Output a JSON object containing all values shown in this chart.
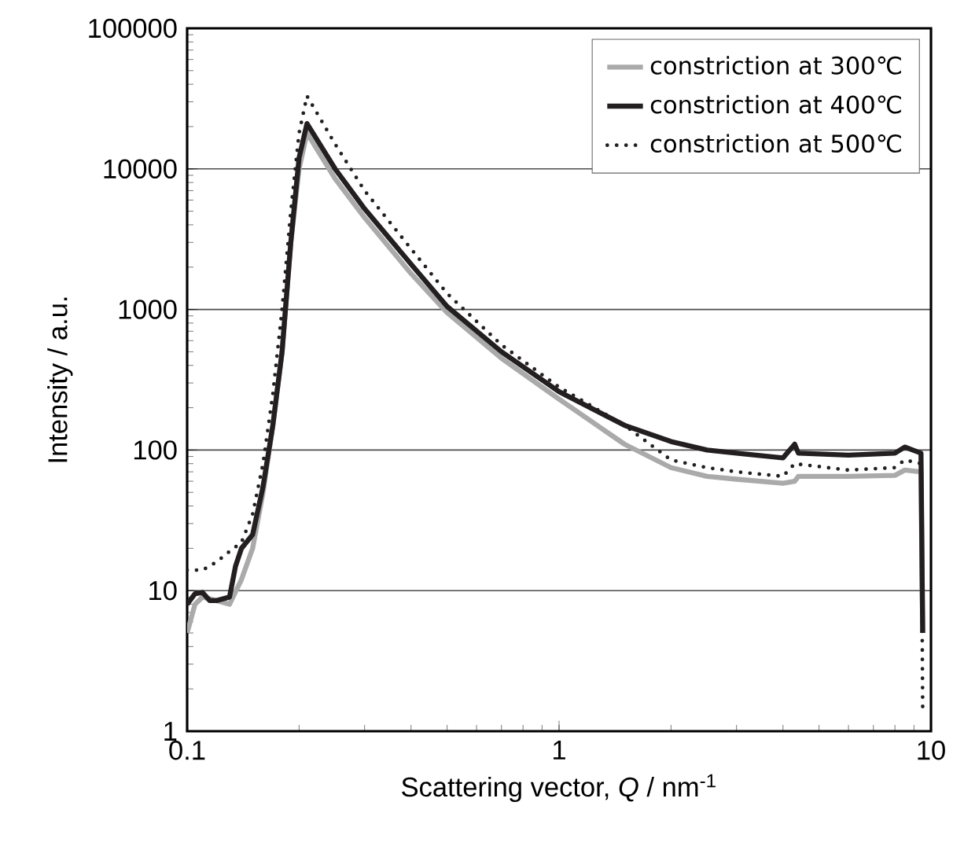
{
  "chart_data": {
    "type": "line",
    "xlabel": "Scattering vector, *Q* / nm$^{-1}$",
    "ylabel": "Intensity / a.u.",
    "log": "xy",
    "xlim": [
      0.1,
      10
    ],
    "ylim": [
      1,
      100000
    ],
    "xticks": [
      0.1,
      1,
      10
    ],
    "yticks": [
      1,
      10,
      100,
      1000,
      10000,
      100000
    ],
    "grid": "y",
    "legend": "top right",
    "marker": "none",
    "series": [
      {
        "name": "constriction at 300℃",
        "color": "#aaaaaa",
        "line_style": "solid",
        "x": [
          0.1,
          0.105,
          0.11,
          0.12,
          0.13,
          0.14,
          0.15,
          0.16,
          0.17,
          0.18,
          0.19,
          0.2,
          0.21,
          0.25,
          0.3,
          0.4,
          0.5,
          0.7,
          1,
          1.5,
          2,
          2.5,
          3,
          4,
          4.3,
          4.4,
          6,
          8,
          8.5,
          9.4,
          9.5
        ],
        "values": [
          5,
          8,
          9,
          8.5,
          8,
          12,
          20,
          50,
          150,
          500,
          3000,
          10000,
          18000,
          8500,
          4500,
          1800,
          950,
          450,
          230,
          110,
          75,
          65,
          62,
          58,
          60,
          65,
          65,
          66,
          72,
          70,
          5
        ]
      },
      {
        "name": "constriction at 400℃",
        "color": "#231f20",
        "line_style": "solid",
        "x": [
          0.1,
          0.105,
          0.11,
          0.115,
          0.12,
          0.13,
          0.135,
          0.14,
          0.15,
          0.16,
          0.17,
          0.18,
          0.19,
          0.2,
          0.21,
          0.25,
          0.3,
          0.4,
          0.5,
          0.7,
          1,
          1.5,
          2,
          2.5,
          3,
          4,
          4.3,
          4.4,
          6,
          8,
          8.5,
          9.4,
          9.5
        ],
        "values": [
          8,
          9.5,
          9.7,
          8.5,
          8.5,
          9,
          15,
          20,
          25,
          55,
          150,
          500,
          3000,
          12000,
          21000,
          10000,
          5200,
          2100,
          1050,
          500,
          260,
          150,
          115,
          100,
          95,
          88,
          110,
          95,
          92,
          95,
          105,
          95,
          5
        ]
      },
      {
        "name": "constriction at 500℃",
        "color": "#231f20",
        "line_style": "dotted",
        "x": [
          0.1,
          0.11,
          0.12,
          0.13,
          0.14,
          0.15,
          0.16,
          0.17,
          0.18,
          0.19,
          0.2,
          0.21,
          0.25,
          0.3,
          0.4,
          0.5,
          0.7,
          1,
          1.5,
          2,
          2.5,
          3,
          4,
          4.3,
          6,
          8,
          8.5,
          9.4,
          9.5
        ],
        "values": [
          14,
          14,
          16,
          19,
          22,
          35,
          80,
          250,
          1000,
          5000,
          18000,
          33000,
          15000,
          7000,
          2700,
          1300,
          560,
          280,
          150,
          85,
          75,
          70,
          65,
          80,
          72,
          75,
          85,
          80,
          1.5
        ]
      }
    ]
  }
}
